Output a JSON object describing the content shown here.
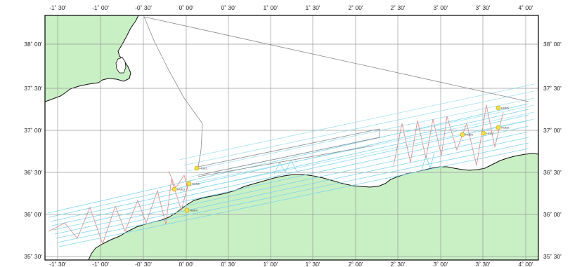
{
  "map": {
    "colors": {
      "land": "#c9efc5",
      "sea": "#ffffff",
      "coast": "#111111",
      "grid": "#9a9a9a",
      "frame": "#000000",
      "transit": "#8a8a8a",
      "cyan_tracks": "#7fd6ec",
      "red_tracks": "#d98a8a",
      "station_fill": "#f3e24a",
      "station_stroke": "#c9a820"
    },
    "lon_labels": [
      "-1˚ 30'",
      "-1˚ 00'",
      "-0˚ 30'",
      "0˚ 00'",
      "0˚ 30'",
      "1˚ 00'",
      "1˚ 30'",
      "2˚ 00'",
      "2˚ 30'",
      "3˚ 00'",
      "3˚ 30'",
      "4˚ 00'"
    ],
    "lat_labels": [
      "38˚ 00'",
      "37˚ 30'",
      "37˚ 00'",
      "36˚ 30'",
      "36˚ 00'",
      "35˚ 30'"
    ],
    "stations": [
      {
        "label": "HGE1"
      },
      {
        "label": "HGE2"
      },
      {
        "label": "HGE3"
      },
      {
        "label": "HGE4"
      },
      {
        "label": "HGE5"
      },
      {
        "label": "HGE6"
      },
      {
        "label": "HGE7"
      },
      {
        "label": "HGE8"
      }
    ]
  }
}
